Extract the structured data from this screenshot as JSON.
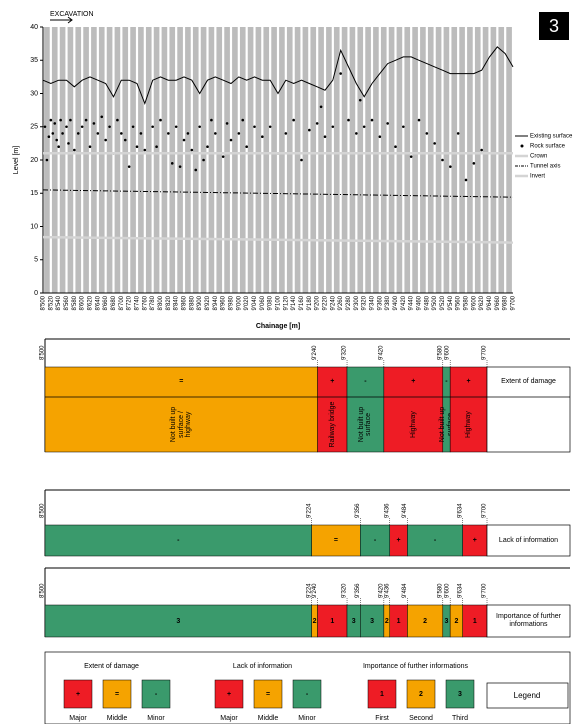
{
  "panel_label": "3",
  "chart_data": {
    "type": "line",
    "annotation": "EXCAVATION",
    "xlabel": "Chainage [m]",
    "ylabel": "Level [m]",
    "xlim": [
      8500,
      9700
    ],
    "ylim": [
      0,
      40
    ],
    "yticks": [
      0,
      5,
      10,
      15,
      20,
      25,
      30,
      35,
      40
    ],
    "grid": true,
    "legend": "right",
    "xticks": [
      {
        "value": 8500,
        "label": "8'500"
      },
      {
        "value": 8520,
        "label": "8'520"
      },
      {
        "value": 8540,
        "label": "8'540"
      },
      {
        "value": 8560,
        "label": "8'560"
      },
      {
        "value": 8580,
        "label": "8'580"
      },
      {
        "value": 8600,
        "label": "8'600"
      },
      {
        "value": 8620,
        "label": "8'620"
      },
      {
        "value": 8640,
        "label": "8'640"
      },
      {
        "value": 8660,
        "label": "8'660"
      },
      {
        "value": 8680,
        "label": "8'680"
      },
      {
        "value": 8700,
        "label": "8'700"
      },
      {
        "value": 8720,
        "label": "8'720"
      },
      {
        "value": 8740,
        "label": "8'740"
      },
      {
        "value": 8760,
        "label": "8'760"
      },
      {
        "value": 8780,
        "label": "8'780"
      },
      {
        "value": 8800,
        "label": "8'800"
      },
      {
        "value": 8820,
        "label": "8'820"
      },
      {
        "value": 8840,
        "label": "8'840"
      },
      {
        "value": 8860,
        "label": "8'860"
      },
      {
        "value": 8880,
        "label": "8'880"
      },
      {
        "value": 8900,
        "label": "8'900"
      },
      {
        "value": 8920,
        "label": "8'920"
      },
      {
        "value": 8940,
        "label": "8'940"
      },
      {
        "value": 8960,
        "label": "8'960"
      },
      {
        "value": 8980,
        "label": "8'980"
      },
      {
        "value": 9000,
        "label": "9'000"
      },
      {
        "value": 9020,
        "label": "9'020"
      },
      {
        "value": 9040,
        "label": "9'040"
      },
      {
        "value": 9060,
        "label": "9'060"
      },
      {
        "value": 9080,
        "label": "9'080"
      },
      {
        "value": 9100,
        "label": "9'100"
      },
      {
        "value": 9120,
        "label": "9'120"
      },
      {
        "value": 9140,
        "label": "9'140"
      },
      {
        "value": 9160,
        "label": "9'160"
      },
      {
        "value": 9180,
        "label": "9'180"
      },
      {
        "value": 9200,
        "label": "9'200"
      },
      {
        "value": 9220,
        "label": "9'220"
      },
      {
        "value": 9240,
        "label": "9'240"
      },
      {
        "value": 9260,
        "label": "9'260"
      },
      {
        "value": 9280,
        "label": "9'280"
      },
      {
        "value": 9300,
        "label": "9'300"
      },
      {
        "value": 9320,
        "label": "9'320"
      },
      {
        "value": 9340,
        "label": "9'340"
      },
      {
        "value": 9360,
        "label": "9'360"
      },
      {
        "value": 9380,
        "label": "9'380"
      },
      {
        "value": 9400,
        "label": "9'400"
      },
      {
        "value": 9420,
        "label": "9'420"
      },
      {
        "value": 9440,
        "label": "9'440"
      },
      {
        "value": 9460,
        "label": "9'460"
      },
      {
        "value": 9480,
        "label": "9'480"
      },
      {
        "value": 9500,
        "label": "9'500"
      },
      {
        "value": 9520,
        "label": "9'520"
      },
      {
        "value": 9540,
        "label": "9'540"
      },
      {
        "value": 9560,
        "label": "9'560"
      },
      {
        "value": 9580,
        "label": "9'580"
      },
      {
        "value": 9600,
        "label": "9'600"
      },
      {
        "value": 9620,
        "label": "9'620"
      },
      {
        "value": 9640,
        "label": "9'640"
      },
      {
        "value": 9660,
        "label": "9'660"
      },
      {
        "value": 9680,
        "label": "9'680"
      },
      {
        "value": 9700,
        "label": "9'700"
      }
    ],
    "x": [
      8500,
      8520,
      8540,
      8560,
      8580,
      8600,
      8620,
      8640,
      8660,
      8680,
      8700,
      8720,
      8740,
      8760,
      8780,
      8800,
      8820,
      8840,
      8860,
      8880,
      8900,
      8920,
      8940,
      8960,
      8980,
      9000,
      9020,
      9040,
      9060,
      9080,
      9100,
      9120,
      9140,
      9160,
      9180,
      9200,
      9220,
      9240,
      9260,
      9280,
      9300,
      9320,
      9340,
      9360,
      9380,
      9400,
      9420,
      9440,
      9460,
      9480,
      9500,
      9520,
      9540,
      9560,
      9580,
      9600,
      9620,
      9640,
      9660,
      9680,
      9700
    ],
    "series": [
      {
        "name": "Existing surface",
        "style": "line",
        "color": "#000000",
        "values": [
          32,
          31.5,
          32,
          32,
          31,
          32,
          32.5,
          32,
          31.5,
          29.5,
          32,
          32,
          31.5,
          28.5,
          32,
          32.5,
          32,
          32,
          32.5,
          32,
          30,
          32,
          32.5,
          32,
          31.5,
          32.5,
          32,
          32.5,
          32,
          32,
          30,
          32,
          31.5,
          32,
          31.5,
          31,
          30.5,
          32,
          36.5,
          34,
          31.5,
          29.5,
          31.5,
          33,
          34.5,
          35,
          35.5,
          35.5,
          35,
          34.5,
          34,
          33.5,
          33,
          33,
          33,
          33,
          33.5,
          35.5,
          37,
          36,
          34
        ]
      },
      {
        "name": "Rock surface",
        "style": "scatter",
        "color": "#000000",
        "x": [
          8505,
          8510,
          8515,
          8520,
          8525,
          8530,
          8535,
          8540,
          8545,
          8550,
          8560,
          8565,
          8570,
          8580,
          8590,
          8600,
          8610,
          8620,
          8630,
          8640,
          8650,
          8660,
          8670,
          8680,
          8690,
          8700,
          8710,
          8720,
          8730,
          8740,
          8750,
          8760,
          8780,
          8790,
          8800,
          8820,
          8830,
          8840,
          8850,
          8860,
          8870,
          8880,
          8890,
          8900,
          8910,
          8920,
          8930,
          8940,
          8960,
          8970,
          8980,
          9000,
          9010,
          9020,
          9040,
          9060,
          9080,
          9100,
          9120,
          9140,
          9160,
          9180,
          9200,
          9210,
          9220,
          9240,
          9260,
          9280,
          9300,
          9310,
          9320,
          9340,
          9360,
          9380,
          9400,
          9420,
          9440,
          9460,
          9480,
          9500,
          9520,
          9540,
          9560,
          9580,
          9600,
          9620
        ],
        "values": [
          25,
          20,
          23.5,
          26,
          24,
          25.5,
          23,
          22,
          26,
          24,
          25,
          22.5,
          26,
          21.5,
          24,
          25,
          26,
          22,
          25.5,
          24,
          26.5,
          23,
          25,
          21,
          26,
          24,
          23,
          19,
          25,
          22,
          24,
          21.5,
          25,
          22,
          26,
          24,
          19.5,
          25,
          19,
          23,
          24,
          21.5,
          18.5,
          25,
          20,
          22,
          26,
          24,
          20.5,
          25.5,
          23,
          24,
          26,
          22,
          25,
          23.5,
          25,
          21,
          24,
          26,
          20,
          24.5,
          25.5,
          28,
          23.5,
          25,
          33,
          26,
          24,
          29,
          25,
          26,
          23.5,
          25.5,
          22,
          25,
          20.5,
          26,
          24,
          22.5,
          20,
          19,
          24,
          17,
          19.5,
          21.5
        ]
      },
      {
        "name": "Crown",
        "style": "line",
        "color": "#d4d4d4",
        "width": 2.5,
        "x": [
          8500,
          9700
        ],
        "values": [
          21,
          21
        ]
      },
      {
        "name": "Tunnel axis",
        "style": "line",
        "color": "#000000",
        "dash": "5 2 1 2",
        "x": [
          8500,
          9700
        ],
        "values": [
          15.5,
          14.4
        ]
      },
      {
        "name": "Invert",
        "style": "line",
        "color": "#d4d4d4",
        "width": 2.5,
        "x": [
          8500,
          9700
        ],
        "values": [
          8.4,
          7.6
        ]
      }
    ]
  },
  "extent_of_damage": {
    "label": "Extent of damage",
    "boundaries": [
      {
        "value": 8500,
        "label": "8'500"
      },
      {
        "value": 9240,
        "label": "9'240"
      },
      {
        "value": 9320,
        "label": "9'320"
      },
      {
        "value": 9420,
        "label": "9'420"
      },
      {
        "value": 9580,
        "label": "9'580"
      },
      {
        "value": 9600,
        "label": "9'600"
      },
      {
        "value": 9700,
        "label": "9'700"
      }
    ],
    "segments": [
      {
        "symbol": "=",
        "color": "#f5a300",
        "text": "Not built up surface / highway"
      },
      {
        "symbol": "+",
        "color": "#ee1c25",
        "text": "Railway bridge"
      },
      {
        "symbol": "-",
        "color": "#3a9a6c",
        "text": "Not built up surface"
      },
      {
        "symbol": "+",
        "color": "#ee1c25",
        "text": "Highway"
      },
      {
        "symbol": "-",
        "color": "#3a9a6c",
        "text": "Not built up surface"
      },
      {
        "symbol": "+",
        "color": "#ee1c25",
        "text": "Highway"
      }
    ]
  },
  "lack_of_information": {
    "label": "Lack of information",
    "boundaries": [
      {
        "value": 8500,
        "label": "8'500"
      },
      {
        "value": 9224,
        "label": "9'224"
      },
      {
        "value": 9356,
        "label": "9'356"
      },
      {
        "value": 9436,
        "label": "9'436"
      },
      {
        "value": 9484,
        "label": "9'484"
      },
      {
        "value": 9634,
        "label": "9'634"
      },
      {
        "value": 9700,
        "label": "9'700"
      }
    ],
    "segments": [
      {
        "symbol": "-",
        "color": "#3a9a6c"
      },
      {
        "symbol": "=",
        "color": "#f5a300"
      },
      {
        "symbol": "-",
        "color": "#3a9a6c"
      },
      {
        "symbol": "+",
        "color": "#ee1c25"
      },
      {
        "symbol": "-",
        "color": "#3a9a6c"
      },
      {
        "symbol": "+",
        "color": "#ee1c25"
      }
    ]
  },
  "importance": {
    "label": "Importance of further informations",
    "boundaries": [
      {
        "value": 8500,
        "label": "8'500"
      },
      {
        "value": 9224,
        "label": "9'224"
      },
      {
        "value": 9240,
        "label": "9'240"
      },
      {
        "value": 9320,
        "label": "9'320"
      },
      {
        "value": 9356,
        "label": "9'356"
      },
      {
        "value": 9420,
        "label": "9'420"
      },
      {
        "value": 9436,
        "label": "9'436"
      },
      {
        "value": 9484,
        "label": "9'484"
      },
      {
        "value": 9580,
        "label": "9'580"
      },
      {
        "value": 9600,
        "label": "9'600"
      },
      {
        "value": 9634,
        "label": "9'634"
      },
      {
        "value": 9700,
        "label": "9'700"
      }
    ],
    "segments": [
      {
        "symbol": 3,
        "color": "#3a9a6c"
      },
      {
        "symbol": 2,
        "color": "#f5a300"
      },
      {
        "symbol": 1,
        "color": "#ee1c25"
      },
      {
        "symbol": 3,
        "color": "#3a9a6c"
      },
      {
        "symbol": 3,
        "color": "#3a9a6c"
      },
      {
        "symbol": 2,
        "color": "#f5a300"
      },
      {
        "symbol": 1,
        "color": "#ee1c25"
      },
      {
        "symbol": 2,
        "color": "#f5a300"
      },
      {
        "symbol": 3,
        "color": "#3a9a6c"
      },
      {
        "symbol": 2,
        "color": "#f5a300"
      },
      {
        "symbol": 1,
        "color": "#ee1c25"
      }
    ]
  },
  "legend": {
    "title": "Legend",
    "groups": [
      {
        "title": "Extent of damage",
        "items": [
          {
            "symbol": "+",
            "label": "Major",
            "color": "#ee1c25"
          },
          {
            "symbol": "=",
            "label": "Middle",
            "color": "#f5a300"
          },
          {
            "symbol": "-",
            "label": "Minor",
            "color": "#3a9a6c"
          }
        ]
      },
      {
        "title": "Lack of information",
        "items": [
          {
            "symbol": "+",
            "label": "Major",
            "color": "#ee1c25"
          },
          {
            "symbol": "=",
            "label": "Middle",
            "color": "#f5a300"
          },
          {
            "symbol": "-",
            "label": "Minor",
            "color": "#3a9a6c"
          }
        ]
      },
      {
        "title": "Importance of further informations",
        "items": [
          {
            "symbol": 1,
            "label": "First",
            "color": "#ee1c25"
          },
          {
            "symbol": 2,
            "label": "Second",
            "color": "#f5a300"
          },
          {
            "symbol": 3,
            "label": "Third",
            "color": "#3a9a6c"
          }
        ]
      }
    ]
  }
}
